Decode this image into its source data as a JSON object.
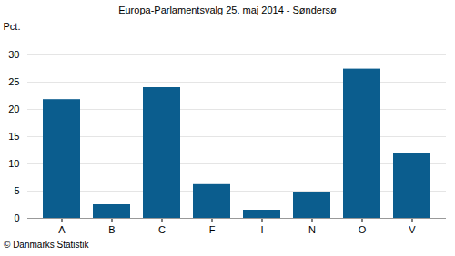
{
  "chart_data": {
    "type": "bar",
    "title": "Europa-Parlamentsvalg 25. maj 2014 - Søndersø",
    "y_label": "Pct.",
    "caption": "© Danmarks Statistik",
    "categories": [
      "A",
      "B",
      "C",
      "F",
      "I",
      "N",
      "O",
      "V"
    ],
    "values": [
      21.8,
      2.5,
      24.0,
      6.2,
      1.5,
      4.8,
      27.4,
      12.0
    ],
    "color": "#0b5d8e",
    "ylim": [
      0,
      30
    ],
    "yticks": [
      0,
      5,
      10,
      15,
      20,
      25,
      30
    ],
    "grid": true
  }
}
